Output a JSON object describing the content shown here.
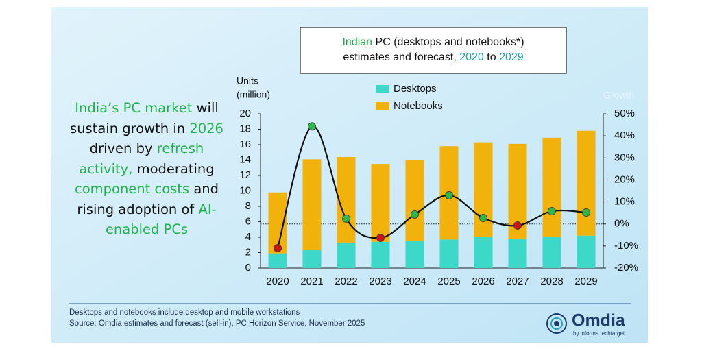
{
  "headline": [
    {
      "text": "India’s PC market",
      "color": "#22b24c"
    },
    {
      "text": "will",
      "color": "#111111"
    },
    {
      "text": "sustain growth in",
      "color": "#111111"
    },
    {
      "text": "2026",
      "color": "#22b24c"
    },
    {
      "text": "driven by",
      "color": "#111111"
    },
    {
      "text": "refresh activity,",
      "color": "#22b24c"
    },
    {
      "text": "moderating",
      "color": "#111111"
    },
    {
      "text": "component costs",
      "color": "#22b24c"
    },
    {
      "text": "and rising adoption of",
      "color": "#111111"
    },
    {
      "text": "AI-enabled PCs",
      "color": "#22b24c"
    }
  ],
  "chart_data": {
    "type": "stacked_bar_line",
    "title": [
      [
        {
          "text": "Indian",
          "color": "#22a84a"
        },
        {
          "text": "PC (desktops and notebooks*)",
          "color": "#111111"
        }
      ],
      [
        {
          "text": "estimates and forecast,",
          "color": "#111111"
        },
        {
          "text": "2020",
          "color": "#1aa3a3"
        },
        {
          "text": "to",
          "color": "#111111"
        },
        {
          "text": "2029",
          "color": "#1aa3a3"
        }
      ]
    ],
    "ylabel": [
      "Units",
      "(million)"
    ],
    "y2label": "Growth",
    "categories": [
      "2020",
      "2021",
      "2022",
      "2023",
      "2024",
      "2025",
      "2026",
      "2027",
      "2028",
      "2029"
    ],
    "series": [
      {
        "name": "Desktops",
        "color": "#3ed8c8",
        "values": [
          1.9,
          2.4,
          3.3,
          3.4,
          3.5,
          3.7,
          4.0,
          3.8,
          4.0,
          4.2
        ]
      },
      {
        "name": "Notebooks",
        "color": "#f2b20c",
        "values": [
          7.9,
          11.7,
          11.1,
          10.1,
          10.5,
          12.1,
          12.3,
          12.3,
          12.9,
          13.6
        ]
      }
    ],
    "growth": {
      "axis": "y2",
      "line_color": "#111111",
      "positive_color": "#2db84d",
      "negative_color": "#c8141c",
      "values": [
        -11,
        44.3,
        2.4,
        -6.3,
        4.3,
        13,
        2.7,
        -0.7,
        5.8,
        5.2
      ]
    },
    "ylim": [
      0,
      20
    ],
    "yticks": [
      0,
      2,
      4,
      6,
      8,
      10,
      12,
      14,
      16,
      18,
      20
    ],
    "y2lim": [
      -20,
      50
    ],
    "y2ticks": [
      {
        "value": -20,
        "label": "-20%"
      },
      {
        "value": -10,
        "label": "-10%"
      },
      {
        "value": 0,
        "label": "0%"
      },
      {
        "value": 10,
        "label": "10%"
      },
      {
        "value": 20,
        "label": "20%"
      },
      {
        "value": 30,
        "label": "30%"
      },
      {
        "value": 40,
        "label": "40%"
      },
      {
        "value": 50,
        "label": "50%"
      }
    ],
    "notes": [
      "Desktops and notebooks include desktop and mobile workstations",
      "Source: Omdia estimates and forecast (sell-in), PC Horizon Service, November 2025"
    ]
  },
  "logo": {
    "name": "Omdia",
    "tagline": "by informa techtarget"
  }
}
